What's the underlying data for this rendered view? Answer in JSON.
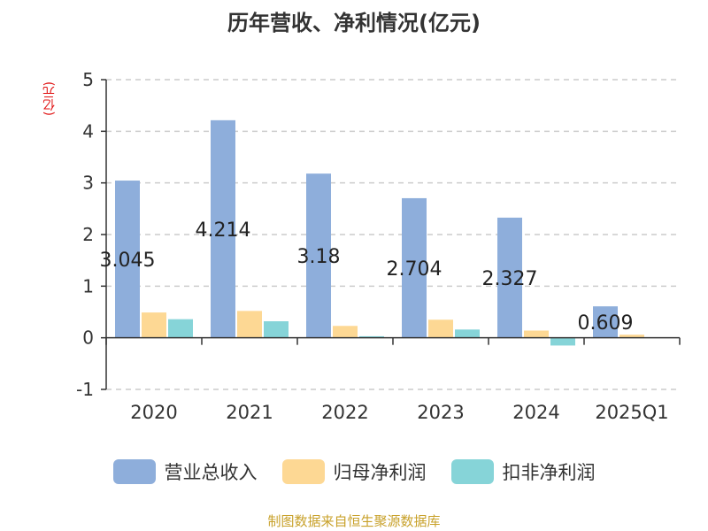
{
  "chart_data": {
    "type": "bar",
    "title": "历年营收、净利情况(亿元)",
    "ylabel": "(亿元)",
    "categories": [
      "2020",
      "2021",
      "2022",
      "2023",
      "2024",
      "2025Q1"
    ],
    "ylim": [
      -1,
      5
    ],
    "yticks": [
      "-1",
      "0",
      "1",
      "2",
      "3",
      "4",
      "5"
    ],
    "grid": true,
    "legend_position": "bottom",
    "series": [
      {
        "name": "营业总收入",
        "color": "#8eaedb",
        "values": [
          3.045,
          4.214,
          3.18,
          2.704,
          2.327,
          0.609
        ]
      },
      {
        "name": "归母净利润",
        "color": "#fdd894",
        "values": [
          0.49,
          0.52,
          0.23,
          0.35,
          0.14,
          0.06
        ]
      },
      {
        "name": "扣非净利润",
        "color": "#86d4d8",
        "values": [
          0.36,
          0.32,
          0.03,
          0.16,
          -0.15,
          0.0
        ]
      }
    ],
    "data_labels": [
      "3.045",
      "4.214",
      "3.18",
      "2.704",
      "2.327",
      "0.609"
    ]
  },
  "source_text": "制图数据来自恒生聚源数据库"
}
